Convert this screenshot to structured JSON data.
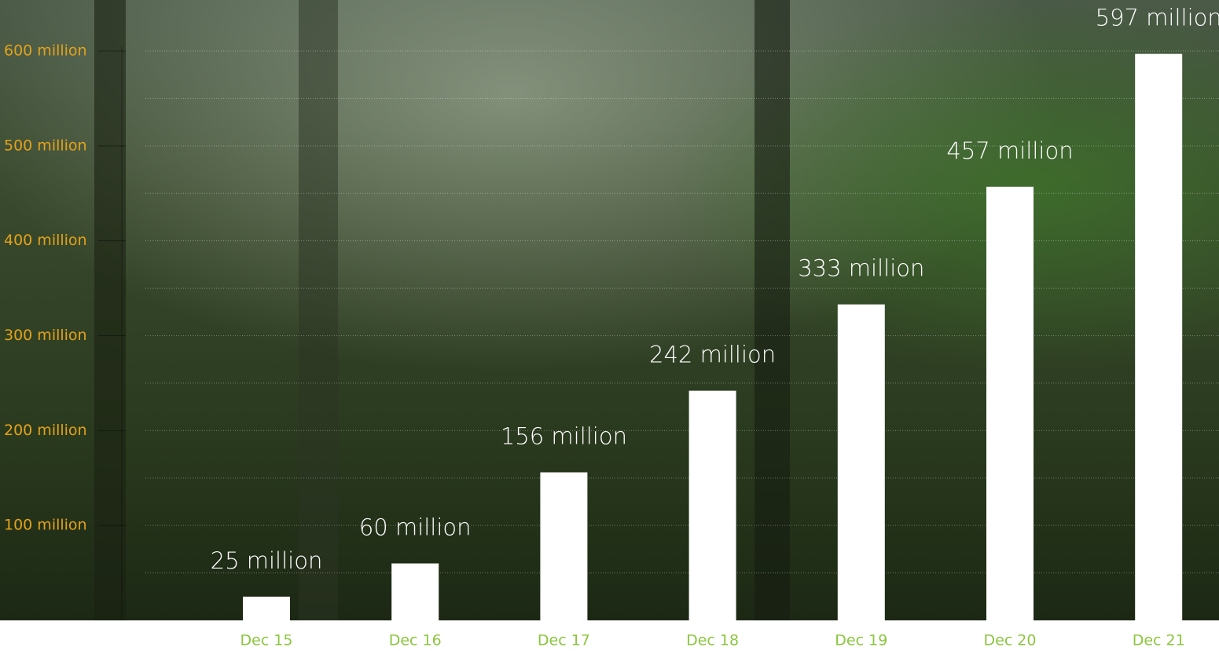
{
  "chart_data": {
    "type": "bar",
    "categories": [
      "Dec 15",
      "Dec 16",
      "Dec 17",
      "Dec 18",
      "Dec 19",
      "Dec 20",
      "Dec 21"
    ],
    "values": [
      25,
      60,
      156,
      242,
      333,
      457,
      597
    ],
    "value_labels": [
      "25 million",
      "60 million",
      "156 million",
      "242 million",
      "333 million",
      "457 million",
      "597 million"
    ],
    "color": "#ffffff",
    "ylim": [
      0,
      600
    ],
    "yticks": [
      {
        "value": 100,
        "label": "100 million"
      },
      {
        "value": 200,
        "label": "200 million"
      },
      {
        "value": 300,
        "label": "300 million"
      },
      {
        "value": 400,
        "label": "400 million"
      },
      {
        "value": 500,
        "label": "500 million"
      },
      {
        "value": 600,
        "label": "600 million"
      }
    ],
    "minor_yticks": [
      50,
      150,
      250,
      350,
      450,
      550
    ],
    "grid": true
  }
}
